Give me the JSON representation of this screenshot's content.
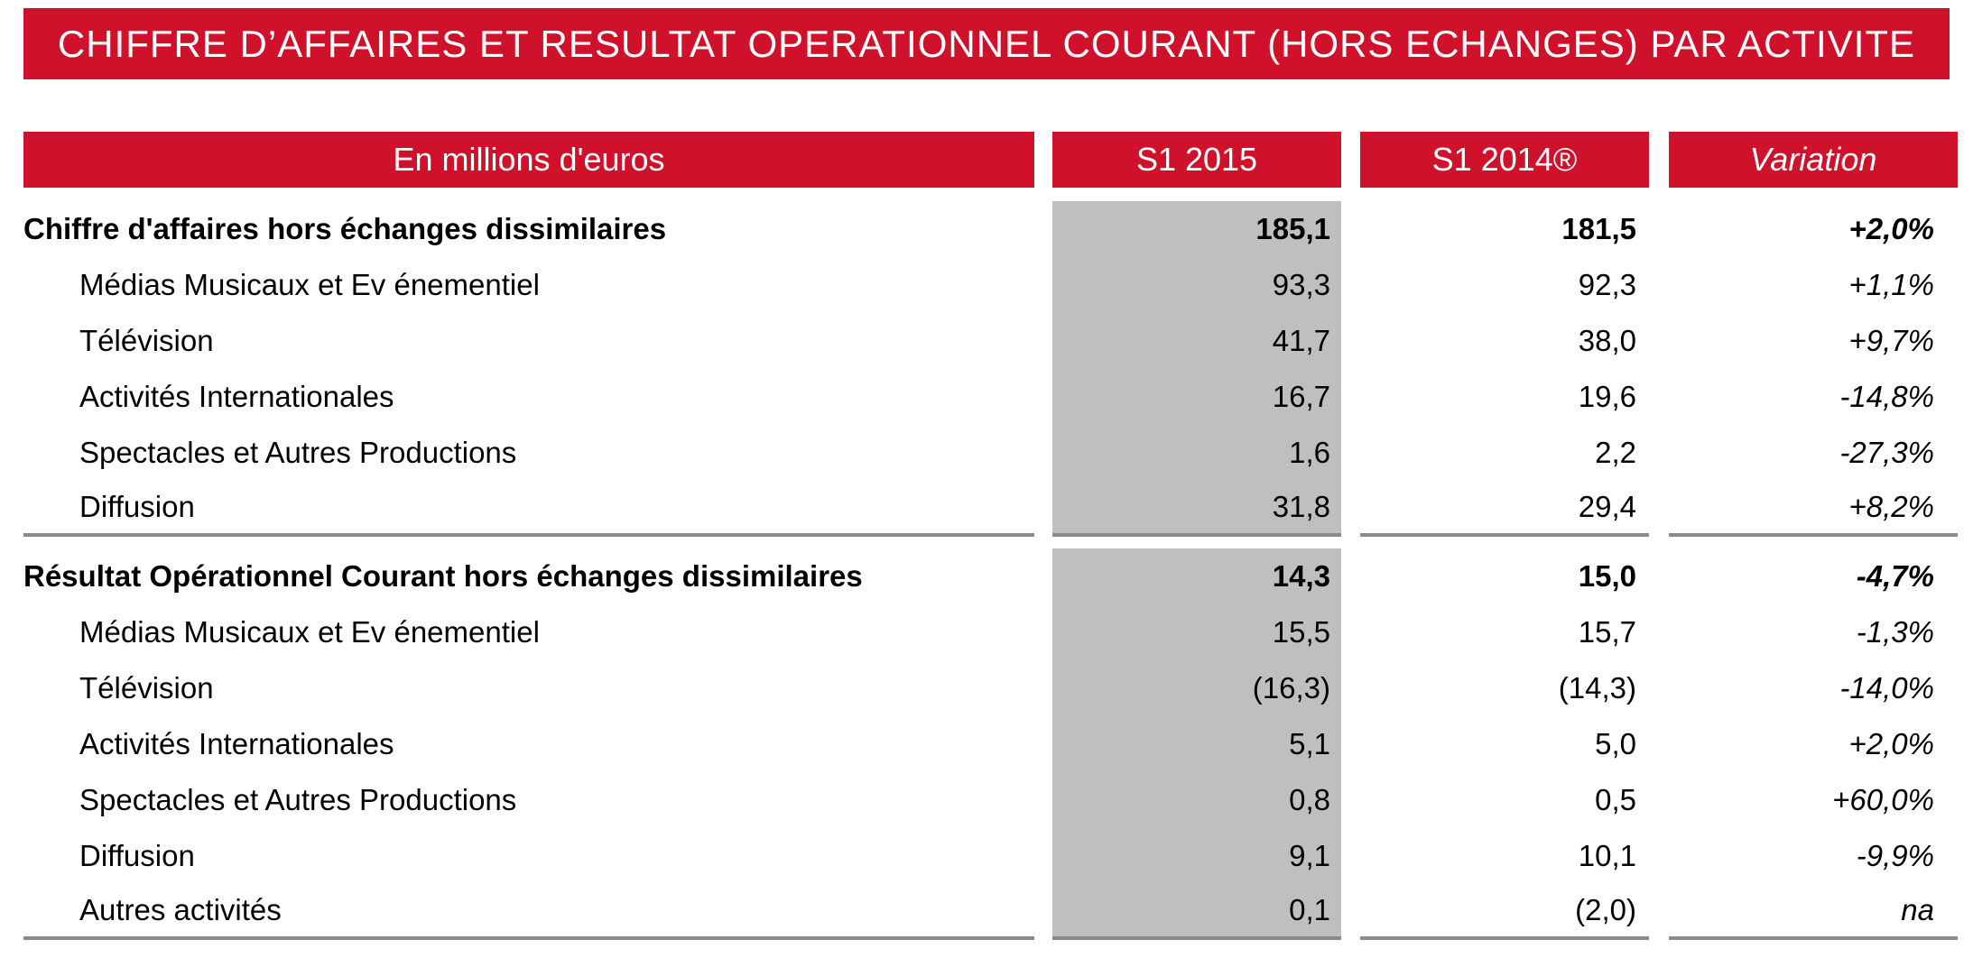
{
  "title": "CHIFFRE D’AFFAIRES ET RESULTAT OPERATIONNEL COURANT (HORS ECHANGES) PAR ACTIVITE",
  "colors": {
    "banner_red": "#D0112B",
    "column_highlight_gray": "#BFBFBF",
    "divider_gray": "#8A8A8A",
    "text_black": "#000000",
    "header_text_white": "#FFFFFF"
  },
  "table": {
    "columns": {
      "label": "En millions d'euros",
      "col1": "S1 2015",
      "col2": "S1 2014®",
      "col3": "Variation"
    },
    "sections": [
      {
        "rows": [
          {
            "label": "Chiffre d'affaires hors échanges dissimilaires",
            "s1_2015": "185,1",
            "s1_2014": "181,5",
            "variation": "+2,0%"
          },
          {
            "label": "Médias Musicaux et Ev énementiel",
            "s1_2015": "93,3",
            "s1_2014": "92,3",
            "variation": "+1,1%"
          },
          {
            "label": "Télévision",
            "s1_2015": "41,7",
            "s1_2014": "38,0",
            "variation": "+9,7%"
          },
          {
            "label": "Activités Internationales",
            "s1_2015": "16,7",
            "s1_2014": "19,6",
            "variation": "-14,8%"
          },
          {
            "label": "Spectacles et Autres Productions",
            "s1_2015": "1,6",
            "s1_2014": "2,2",
            "variation": "-27,3%"
          },
          {
            "label": "Diffusion",
            "s1_2015": "31,8",
            "s1_2014": "29,4",
            "variation": "+8,2%"
          }
        ]
      },
      {
        "rows": [
          {
            "label": "Résultat Opérationnel Courant hors échanges dissimilaires",
            "s1_2015": "14,3",
            "s1_2014": "15,0",
            "variation": "-4,7%"
          },
          {
            "label": "Médias Musicaux et Ev énementiel",
            "s1_2015": "15,5",
            "s1_2014": "15,7",
            "variation": "-1,3%"
          },
          {
            "label": "Télévision",
            "s1_2015": "(16,3)",
            "s1_2014": "(14,3)",
            "variation": "-14,0%"
          },
          {
            "label": "Activités Internationales",
            "s1_2015": "5,1",
            "s1_2014": "5,0",
            "variation": "+2,0%"
          },
          {
            "label": "Spectacles et Autres Productions",
            "s1_2015": "0,8",
            "s1_2014": "0,5",
            "variation": "+60,0%"
          },
          {
            "label": "Diffusion",
            "s1_2015": "9,1",
            "s1_2014": "10,1",
            "variation": "-9,9%"
          },
          {
            "label": "Autres activités",
            "s1_2015": "0,1",
            "s1_2014": "(2,0)",
            "variation": "na"
          }
        ]
      }
    ]
  }
}
